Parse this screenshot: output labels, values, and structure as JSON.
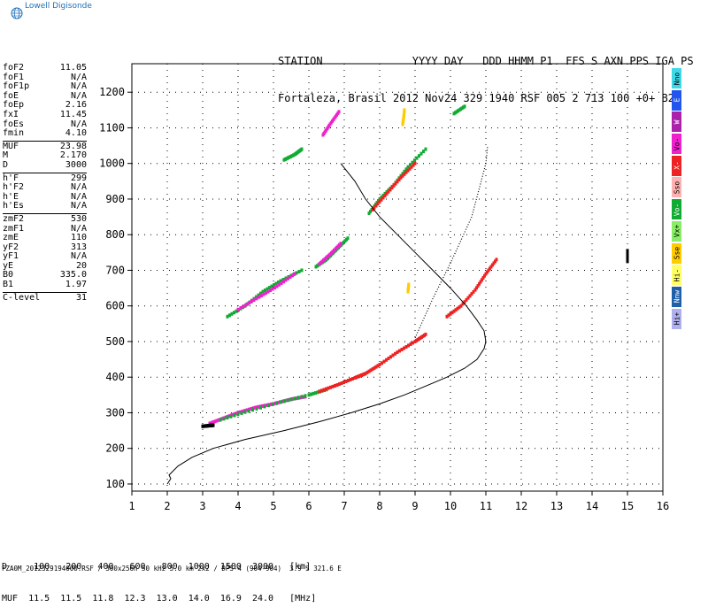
{
  "logo": {
    "text": "Lowell Digisonde",
    "icon": "globe-icon"
  },
  "header": {
    "line1": "STATION              YYYY DAY   DDD HHMM P1  FFS S AXN PPS IGA PS",
    "line2": "Fortaleza, Brasil 2012 Nov24 329 1940 RSF 005 2 713 100 +0+ B2"
  },
  "params": {
    "group1": [
      {
        "label": "foF2",
        "value": "11.05"
      },
      {
        "label": "foF1",
        "value": "N/A"
      },
      {
        "label": "foF1p",
        "value": "N/A"
      },
      {
        "label": "foE",
        "value": "N/A"
      },
      {
        "label": "foEp",
        "value": "2.16"
      },
      {
        "label": "fxI",
        "value": "11.45"
      },
      {
        "label": "foEs",
        "value": "N/A"
      },
      {
        "label": "fmin",
        "value": "4.10"
      }
    ],
    "group2": [
      {
        "label": "MUF",
        "value": "23.98"
      },
      {
        "label": "M",
        "value": "2.170"
      },
      {
        "label": "D",
        "value": "3000"
      }
    ],
    "group3": [
      {
        "label": "h'F",
        "value": "299"
      },
      {
        "label": "h'F2",
        "value": "N/A"
      },
      {
        "label": "h'E",
        "value": "N/A"
      },
      {
        "label": "h'Es",
        "value": "N/A"
      }
    ],
    "group4": [
      {
        "label": "zmF2",
        "value": "530"
      },
      {
        "label": "zmF1",
        "value": "N/A"
      },
      {
        "label": "zmE",
        "value": "110"
      },
      {
        "label": "yF2",
        "value": "313"
      },
      {
        "label": "yF1",
        "value": "N/A"
      },
      {
        "label": "yE",
        "value": "20"
      },
      {
        "label": "B0",
        "value": "335.0"
      },
      {
        "label": "B1",
        "value": "1.97"
      }
    ],
    "group5": [
      {
        "label": "C-level",
        "value": "31"
      }
    ]
  },
  "legend": [
    {
      "label": "Nno",
      "color": "#3fd8e8"
    },
    {
      "label": "E",
      "color": "#2255ee"
    },
    {
      "label": "W",
      "color": "#aa22aa"
    },
    {
      "label": "Vo-",
      "color": "#ee22cc"
    },
    {
      "label": "X-",
      "color": "#ee2222"
    },
    {
      "label": "Sso",
      "color": "#ffb0b0"
    },
    {
      "label": "Vo-",
      "color": "#11aa33"
    },
    {
      "label": "Vx+",
      "color": "#88ee66"
    },
    {
      "label": "Sse",
      "color": "#ffcc00"
    },
    {
      "label": "Hi-",
      "color": "#ffff66"
    },
    {
      "label": "Nnw",
      "color": "#1f5fa8"
    },
    {
      "label": "Hi+",
      "color": "#b0b0ee"
    }
  ],
  "dtable": {
    "row1": "D     100   200   400   600   800  1000  1500  3000   [km]",
    "row2": "MUF  11.5  11.5  11.8  12.3  13.0  14.0  16.9  24.0   [MHz]"
  },
  "footer": "FZA0M_2012329194000.RSF / 300x256h 50 kHz 5.0 km 2x2 / DPS-4 (904-904)  3.9 S 321.6 E",
  "chart_data": {
    "type": "scatter",
    "xlim": [
      1,
      16
    ],
    "ylim": [
      80,
      1280
    ],
    "x_ticks": [
      1,
      2,
      3,
      4,
      5,
      6,
      7,
      8,
      9,
      10,
      11,
      12,
      13,
      14,
      15,
      16
    ],
    "y_ticks": [
      100,
      200,
      300,
      400,
      500,
      600,
      700,
      800,
      900,
      1000,
      1100,
      1200
    ],
    "grid": "dotted",
    "profile_line": [
      [
        2.0,
        100
      ],
      [
        2.1,
        115
      ],
      [
        2.05,
        125
      ],
      [
        2.3,
        150
      ],
      [
        2.7,
        175
      ],
      [
        3.3,
        200
      ],
      [
        4.2,
        225
      ],
      [
        5.3,
        250
      ],
      [
        6.3,
        275
      ],
      [
        7.2,
        300
      ],
      [
        8.0,
        325
      ],
      [
        8.7,
        350
      ],
      [
        9.3,
        375
      ],
      [
        9.9,
        400
      ],
      [
        10.4,
        425
      ],
      [
        10.75,
        450
      ],
      [
        10.95,
        480
      ],
      [
        11.0,
        500
      ],
      [
        10.95,
        530
      ],
      [
        10.75,
        560
      ],
      [
        10.45,
        600
      ],
      [
        10.0,
        650
      ],
      [
        9.5,
        700
      ],
      [
        9.0,
        750
      ],
      [
        8.5,
        800
      ],
      [
        8.0,
        850
      ],
      [
        7.6,
        900
      ],
      [
        7.3,
        950
      ],
      [
        6.9,
        1000
      ]
    ],
    "dotted_line": [
      [
        9.0,
        510
      ],
      [
        9.5,
        620
      ],
      [
        10.0,
        720
      ],
      [
        10.6,
        850
      ],
      [
        11.0,
        1000
      ],
      [
        11.05,
        1050
      ]
    ],
    "traces": [
      {
        "color": "#ee22cc",
        "points": [
          [
            3.2,
            270
          ],
          [
            3.6,
            285
          ],
          [
            4.0,
            300
          ],
          [
            4.5,
            315
          ],
          [
            5.0,
            325
          ],
          [
            5.5,
            338
          ],
          [
            5.9,
            345
          ]
        ]
      },
      {
        "color": "#11aa33",
        "points": [
          [
            3.5,
            280
          ],
          [
            4.3,
            305
          ],
          [
            5.2,
            330
          ],
          [
            6.0,
            350
          ],
          [
            6.5,
            365
          ]
        ]
      },
      {
        "color": "#ee2222",
        "points": [
          [
            6.3,
            360
          ],
          [
            6.8,
            378
          ],
          [
            7.3,
            398
          ],
          [
            7.6,
            410
          ],
          [
            8.0,
            435
          ],
          [
            8.5,
            470
          ],
          [
            9.0,
            500
          ],
          [
            9.3,
            520
          ]
        ]
      },
      {
        "color": "#ee2222",
        "points": [
          [
            9.9,
            570
          ],
          [
            10.3,
            600
          ],
          [
            10.7,
            645
          ],
          [
            11.0,
            690
          ],
          [
            11.3,
            730
          ]
        ]
      },
      {
        "color": "#11aa33",
        "points": [
          [
            3.7,
            570
          ],
          [
            4.2,
            600
          ],
          [
            4.7,
            640
          ],
          [
            5.2,
            670
          ],
          [
            5.8,
            700
          ]
        ]
      },
      {
        "color": "#ee22cc",
        "points": [
          [
            4.0,
            590
          ],
          [
            4.6,
            625
          ],
          [
            5.1,
            655
          ],
          [
            5.6,
            690
          ]
        ]
      },
      {
        "color": "#11aa33",
        "points": [
          [
            6.2,
            710
          ],
          [
            6.5,
            730
          ],
          [
            6.8,
            760
          ],
          [
            7.1,
            790
          ]
        ]
      },
      {
        "color": "#ee22cc",
        "points": [
          [
            6.3,
            718
          ],
          [
            6.6,
            745
          ],
          [
            6.9,
            775
          ]
        ]
      },
      {
        "color": "#11aa33",
        "points": [
          [
            7.7,
            860
          ],
          [
            8.0,
            900
          ],
          [
            8.4,
            940
          ],
          [
            8.8,
            990
          ],
          [
            9.3,
            1040
          ]
        ]
      },
      {
        "color": "#ee2222",
        "points": [
          [
            7.8,
            870
          ],
          [
            8.2,
            915
          ],
          [
            8.6,
            960
          ],
          [
            9.0,
            1000
          ]
        ]
      },
      {
        "color": "#ee22cc",
        "points": [
          [
            6.4,
            1080
          ],
          [
            6.6,
            1110
          ],
          [
            6.85,
            1145
          ]
        ]
      },
      {
        "color": "#11aa33",
        "points": [
          [
            5.3,
            1010
          ],
          [
            5.6,
            1025
          ],
          [
            5.8,
            1040
          ]
        ]
      },
      {
        "color": "#ffcc00",
        "points": [
          [
            8.65,
            1110
          ],
          [
            8.68,
            1130
          ],
          [
            8.7,
            1150
          ]
        ]
      },
      {
        "color": "#ffcc00",
        "points": [
          [
            8.8,
            640
          ],
          [
            8.82,
            660
          ]
        ]
      },
      {
        "color": "#11aa33",
        "points": [
          [
            10.1,
            1140
          ],
          [
            10.4,
            1160
          ]
        ]
      },
      {
        "color": "#000000",
        "points": [
          [
            3.0,
            262
          ],
          [
            3.2,
            264
          ],
          [
            3.3,
            265
          ]
        ]
      },
      {
        "color": "#000000",
        "points": [
          [
            15.0,
            725
          ],
          [
            15.0,
            740
          ],
          [
            15.0,
            755
          ]
        ]
      }
    ]
  }
}
